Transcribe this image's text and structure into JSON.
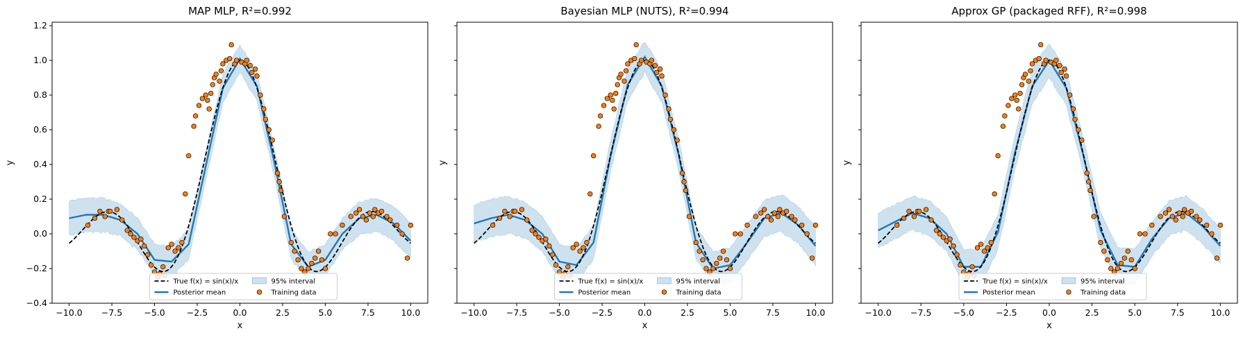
{
  "chart_data": [
    {
      "type": "line",
      "title": "MAP MLP, R²=0.992",
      "xlabel": "x",
      "ylabel": "y",
      "xlim": [
        -11,
        11
      ],
      "ylim": [
        -0.4,
        1.22
      ],
      "xticks": [
        -10.0,
        -7.5,
        -5.0,
        -2.5,
        0.0,
        2.5,
        5.0,
        7.5,
        10.0
      ],
      "xtick_labels": [
        "−10.0",
        "−7.5",
        "−5.0",
        "−2.5",
        "0.0",
        "2.5",
        "5.0",
        "7.5",
        "10.0"
      ],
      "yticks": [
        -0.4,
        -0.2,
        0.0,
        0.2,
        0.4,
        0.6,
        0.8,
        1.0,
        1.2
      ],
      "ytick_labels": [
        "−0.4",
        "−0.2",
        "0.0",
        "0.2",
        "0.4",
        "0.6",
        "0.8",
        "1.0",
        "1.2"
      ],
      "show_y_tick_labels": true,
      "legend": {
        "placement": "lower-center",
        "entries": [
          "True f(x) = sin(x)/x",
          "Posterior mean",
          "95% interval",
          "Training data"
        ]
      },
      "series": [
        {
          "name": "True f(x) = sin(x)/x",
          "style": "dashed",
          "color": "#000000",
          "function": "sin(x)/x"
        },
        {
          "name": "Posterior mean",
          "style": "solid",
          "color": "#1f77b4",
          "x": [
            -10,
            -9,
            -8,
            -7,
            -6,
            -5,
            -4,
            -3,
            -2,
            -1,
            0,
            1,
            2,
            3,
            4,
            5,
            6,
            7,
            8,
            9,
            10
          ],
          "y": [
            0.09,
            0.11,
            0.11,
            0.08,
            0.0,
            -0.15,
            -0.16,
            -0.06,
            0.39,
            0.84,
            1.01,
            0.85,
            0.42,
            -0.06,
            -0.19,
            -0.15,
            0.0,
            0.09,
            0.11,
            0.06,
            -0.04
          ]
        },
        {
          "name": "95% interval",
          "type": "band",
          "color": "#1f77b4",
          "halfwidth": [
            0.08,
            0.09,
            0.1
          ]
        },
        {
          "name": "Training data",
          "type": "scatter",
          "color": "#ff7f0e",
          "x": [
            -8.9,
            -8.5,
            -8.2,
            -7.9,
            -7.7,
            -7.6,
            -7.2,
            -6.9,
            -6.6,
            -6.4,
            -6.2,
            -6.0,
            -5.8,
            -5.6,
            -5.4,
            -5.2,
            -5.0,
            -4.8,
            -4.7,
            -4.5,
            -4.4,
            -4.2,
            -4.0,
            -3.8,
            -3.6,
            -3.4,
            -3.2,
            -3.0,
            -2.7,
            -2.6,
            -2.4,
            -2.2,
            -2.0,
            -1.9,
            -1.8,
            -1.7,
            -1.6,
            -1.5,
            -1.4,
            -1.2,
            -1.1,
            -1.0,
            -0.8,
            -0.6,
            -0.5,
            -0.3,
            -0.2,
            0.1,
            0.3,
            0.4,
            0.6,
            0.7,
            0.9,
            1.0,
            1.2,
            1.4,
            1.5,
            1.7,
            1.9,
            2.2,
            2.3,
            2.4,
            2.6,
            3.0,
            3.2,
            3.4,
            3.6,
            3.8,
            4.0,
            4.2,
            4.4,
            4.6,
            4.8,
            5.0,
            5.3,
            5.6,
            6.0,
            6.5,
            6.8,
            7.0,
            7.2,
            7.4,
            7.6,
            7.8,
            7.9,
            8.1,
            8.3,
            8.6,
            8.8,
            9.2,
            9.5,
            9.8,
            10.0
          ],
          "y": [
            0.05,
            0.09,
            0.13,
            0.1,
            0.13,
            0.13,
            0.14,
            0.08,
            0.02,
            0.0,
            -0.02,
            -0.04,
            -0.03,
            -0.07,
            -0.12,
            -0.18,
            -0.22,
            -0.25,
            -0.23,
            -0.19,
            -0.24,
            -0.08,
            -0.06,
            -0.1,
            -0.08,
            -0.05,
            0.23,
            0.45,
            0.62,
            0.68,
            0.74,
            0.78,
            0.8,
            0.77,
            0.72,
            0.81,
            0.86,
            0.9,
            0.92,
            0.88,
            0.94,
            0.98,
            1.0,
            1.01,
            1.09,
            0.98,
            1.0,
            0.99,
            0.98,
            1.0,
            0.97,
            0.93,
            0.95,
            0.91,
            0.8,
            0.72,
            0.66,
            0.6,
            0.54,
            0.35,
            0.3,
            0.25,
            0.1,
            -0.05,
            -0.1,
            -0.15,
            -0.2,
            -0.22,
            -0.2,
            -0.17,
            -0.14,
            -0.1,
            -0.15,
            -0.2,
            0.0,
            0.0,
            0.05,
            0.1,
            0.12,
            0.14,
            0.1,
            0.08,
            0.12,
            0.1,
            0.14,
            0.12,
            0.13,
            0.1,
            0.08,
            0.05,
            0.0,
            -0.14,
            0.05
          ]
        }
      ]
    },
    {
      "type": "line",
      "title": "Bayesian MLP (NUTS), R²=0.994",
      "xlabel": "x",
      "ylabel": "y",
      "xlim": [
        -11,
        11
      ],
      "ylim": [
        -0.4,
        1.22
      ],
      "xticks": [
        -10.0,
        -7.5,
        -5.0,
        -2.5,
        0.0,
        2.5,
        5.0,
        7.5,
        10.0
      ],
      "xtick_labels": [
        "−10.0",
        "−7.5",
        "−5.0",
        "−2.5",
        "0.0",
        "2.5",
        "5.0",
        "7.5",
        "10.0"
      ],
      "yticks": [
        -0.4,
        -0.2,
        0.0,
        0.2,
        0.4,
        0.6,
        0.8,
        1.0,
        1.2
      ],
      "ytick_labels": [
        "",
        "",
        "",
        "",
        "",
        "",
        "",
        "",
        ""
      ],
      "show_y_tick_labels": false,
      "legend": {
        "placement": "lower-center",
        "entries": [
          "True f(x) = sin(x)/x",
          "Posterior mean",
          "95% interval",
          "Training data"
        ]
      },
      "series": [
        {
          "name": "True f(x) = sin(x)/x",
          "style": "dashed",
          "color": "#000000",
          "function": "sin(x)/x"
        },
        {
          "name": "Posterior mean",
          "style": "solid",
          "color": "#1f77b4",
          "x": [
            -10,
            -9,
            -8,
            -7,
            -6,
            -5,
            -4,
            -3,
            -2,
            -1,
            0,
            1,
            2,
            3,
            4,
            5,
            6,
            7,
            8,
            9,
            10
          ],
          "y": [
            0.06,
            0.09,
            0.11,
            0.08,
            0.0,
            -0.16,
            -0.18,
            -0.05,
            0.45,
            0.86,
            1.02,
            0.85,
            0.45,
            -0.05,
            -0.2,
            -0.18,
            -0.05,
            0.09,
            0.12,
            0.05,
            -0.07
          ]
        },
        {
          "name": "95% interval",
          "type": "band",
          "color": "#1f77b4",
          "halfwidth": [
            0.09,
            0.1,
            0.11
          ]
        },
        {
          "name": "Training data",
          "type": "scatter",
          "color": "#ff7f0e",
          "same_as_panel": 1
        }
      ]
    },
    {
      "type": "line",
      "title": "Approx GP (packaged RFF), R²=0.998",
      "xlabel": "x",
      "ylabel": "y",
      "xlim": [
        -11,
        11
      ],
      "ylim": [
        -0.4,
        1.22
      ],
      "xticks": [
        -10.0,
        -7.5,
        -5.0,
        -2.5,
        0.0,
        2.5,
        5.0,
        7.5,
        10.0
      ],
      "xtick_labels": [
        "−10.0",
        "−7.5",
        "−5.0",
        "−2.5",
        "0.0",
        "2.5",
        "5.0",
        "7.5",
        "10.0"
      ],
      "yticks": [
        -0.4,
        -0.2,
        0.0,
        0.2,
        0.4,
        0.6,
        0.8,
        1.0,
        1.2
      ],
      "ytick_labels": [
        "",
        "",
        "",
        "",
        "",
        "",
        "",
        "",
        ""
      ],
      "show_y_tick_labels": false,
      "legend": {
        "placement": "lower-center",
        "entries": [
          "True f(x) = sin(x)/x",
          "Posterior mean",
          "95% interval",
          "Training data"
        ]
      },
      "series": [
        {
          "name": "True f(x) = sin(x)/x",
          "style": "dashed",
          "color": "#000000",
          "function": "sin(x)/x"
        },
        {
          "name": "Posterior mean",
          "style": "solid",
          "color": "#1f77b4",
          "x": [
            -10,
            -9,
            -8,
            -7,
            -6,
            -5,
            -4,
            -3,
            -2,
            -1,
            0,
            1,
            2,
            3,
            4,
            5,
            6,
            7,
            8,
            9,
            10
          ],
          "y": [
            0.02,
            0.07,
            0.12,
            0.09,
            0.0,
            -0.19,
            -0.19,
            0.01,
            0.47,
            0.85,
            1.0,
            0.84,
            0.45,
            0.02,
            -0.18,
            -0.19,
            -0.03,
            0.09,
            0.12,
            0.04,
            -0.07
          ]
        },
        {
          "name": "95% interval",
          "type": "band",
          "color": "#1f77b4",
          "halfwidth": [
            0.1,
            0.1,
            0.1
          ]
        },
        {
          "name": "Training data",
          "type": "scatter",
          "color": "#ff7f0e",
          "same_as_panel": 1
        }
      ]
    }
  ]
}
